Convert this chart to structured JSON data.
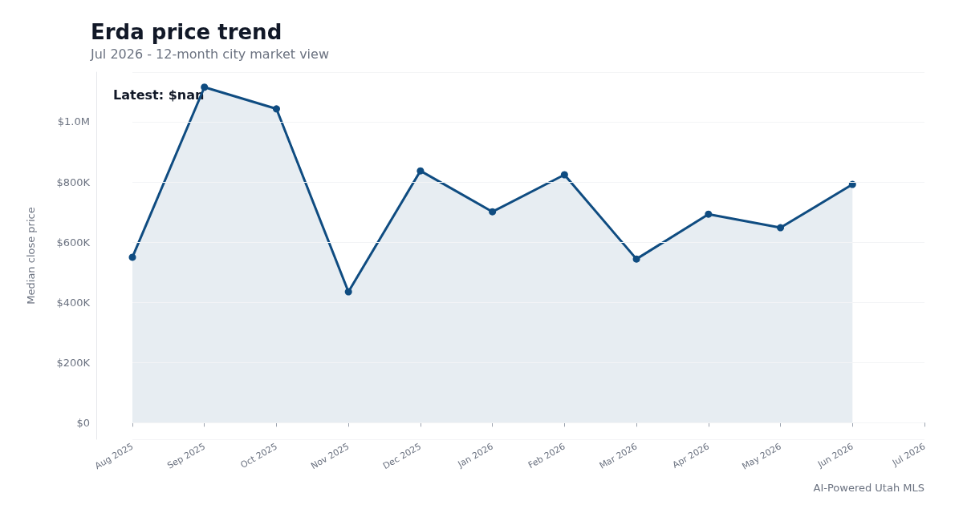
{
  "chart_data": {
    "type": "area",
    "title": "Erda price trend",
    "subtitle": "Jul 2026 - 12-month city market view",
    "ylabel": "Median close price",
    "categories": [
      "Aug 2025",
      "Sep 2025",
      "Oct 2025",
      "Nov 2025",
      "Dec 2025",
      "Jan 2026",
      "Feb 2026",
      "Mar 2026",
      "Apr 2026",
      "May 2026",
      "Jun 2026",
      "Jul 2026"
    ],
    "series": [
      {
        "color": "#0f4c81",
        "values": [
          550000,
          1115000,
          1043000,
          435000,
          837000,
          701000,
          824000,
          544000,
          693000,
          648000,
          792000,
          null
        ]
      }
    ],
    "ylim": [
      -55000,
      1165000
    ],
    "yticks": [
      {
        "value": 0,
        "label": "$0"
      },
      {
        "value": 200000,
        "label": "$200K"
      },
      {
        "value": 400000,
        "label": "$400K"
      },
      {
        "value": 600000,
        "label": "$600K"
      },
      {
        "value": 800000,
        "label": "$800K"
      },
      {
        "value": 1000000,
        "label": "$1.0M"
      }
    ],
    "grid": "y",
    "marker": "circle",
    "annotations": [
      "Latest: $nan",
      "AI-Powered Utah MLS"
    ]
  }
}
